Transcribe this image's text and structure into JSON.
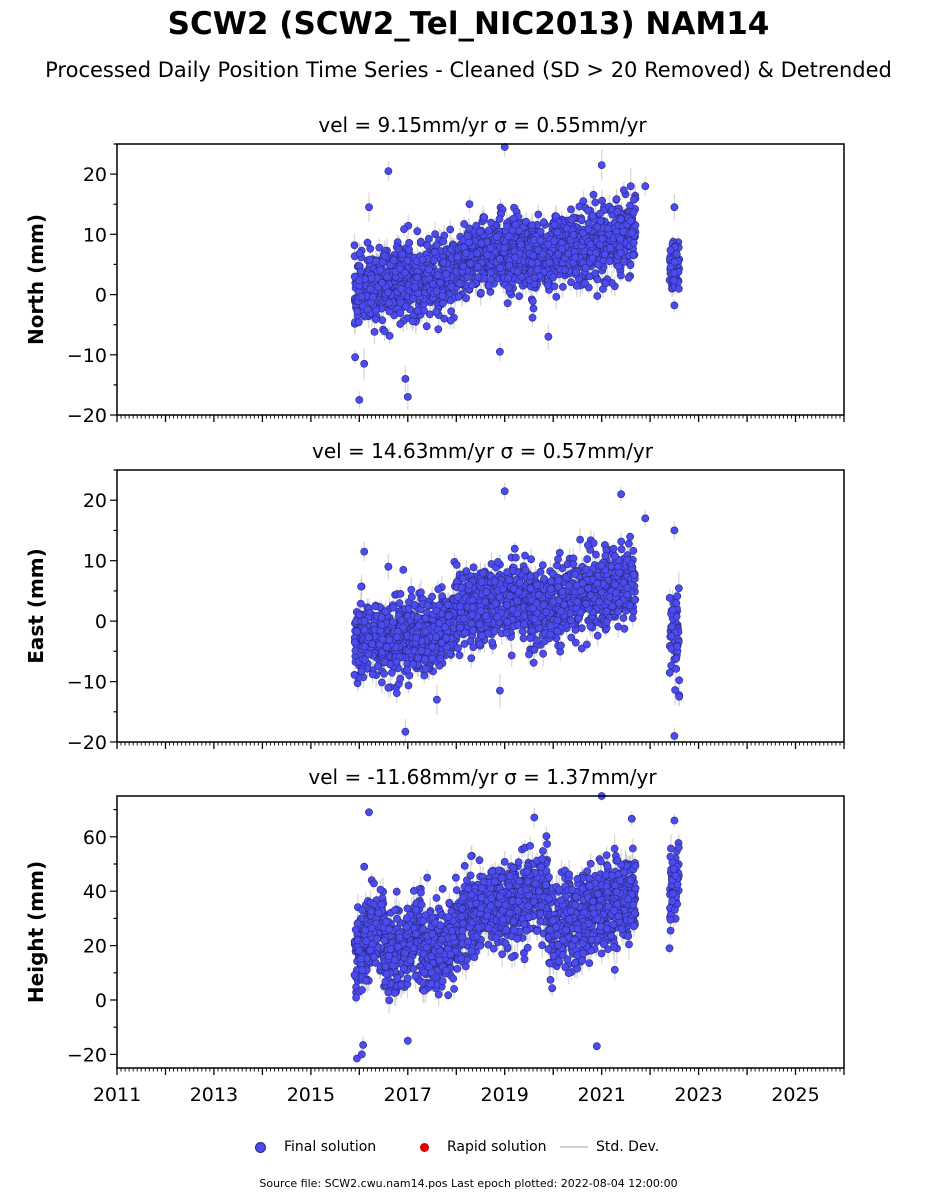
{
  "title": "SCW2 (SCW2_Tel_NIC2013) NAM14",
  "subtitle": "Processed Daily Position Time Series - Cleaned (SD > 20 Removed) & Detrended",
  "legend": {
    "final_label": "Final solution",
    "rapid_label": "Rapid solution",
    "std_label": "Std. Dev."
  },
  "footer": "Source file: SCW2.cwu.nam14.pos  Last epoch plotted: 2022-08-04 12:00:00",
  "colors": {
    "final": "#4b4bf0",
    "final_edge": "#2a2a80",
    "rapid": "#e00000",
    "std": "#c8c8c8"
  },
  "chart_data": [
    {
      "type": "scatter",
      "panel": "north",
      "title": "vel = 9.15mm/yr   σ = 0.55mm/yr",
      "ylabel": "North (mm)",
      "xlim": [
        2011,
        2026
      ],
      "ylim": [
        -20,
        25
      ],
      "yticks": [
        -20,
        -10,
        0,
        10,
        20
      ],
      "xticks": [
        2011,
        2013,
        2015,
        2017,
        2019,
        2021,
        2023,
        2025
      ],
      "series": [
        {
          "segments": [
            {
              "x": [
                2015.9,
                2017.1
              ],
              "y": [
                0,
                3
              ],
              "spread": 4
            },
            {
              "x": [
                2017.1,
                2018.0
              ],
              "y": [
                1,
                4
              ],
              "spread": 4
            },
            {
              "x": [
                2018.0,
                2019.5
              ],
              "y": [
                5,
                8
              ],
              "spread": 4
            },
            {
              "x": [
                2019.5,
                2021.7
              ],
              "y": [
                6,
                10
              ],
              "spread": 4
            },
            {
              "x": [
                2022.4,
                2022.6
              ],
              "y": [
                4,
                5
              ],
              "spread": 3
            }
          ],
          "outliers": [
            [
              2016.0,
              -17.5
            ],
            [
              2016.6,
              20.5
            ],
            [
              2019.0,
              24.5
            ],
            [
              2021.0,
              21.5
            ],
            [
              2017.0,
              -17
            ],
            [
              2016.2,
              14.5
            ],
            [
              2021.6,
              18
            ],
            [
              2018.9,
              -9.5
            ],
            [
              2016.1,
              -11.5
            ],
            [
              2019.9,
              -7
            ],
            [
              2022.5,
              14.5
            ],
            [
              2022.5,
              -1.8
            ],
            [
              2016.95,
              -14
            ],
            [
              2021.9,
              18
            ]
          ]
        }
      ]
    },
    {
      "type": "scatter",
      "panel": "east",
      "title": "vel = 14.63mm/yr   σ = 0.57mm/yr",
      "ylabel": "East (mm)",
      "xlim": [
        2011,
        2026
      ],
      "ylim": [
        -20,
        25
      ],
      "yticks": [
        -20,
        -10,
        0,
        10,
        20
      ],
      "xticks": [
        2011,
        2013,
        2015,
        2017,
        2019,
        2021,
        2023,
        2025
      ],
      "series": [
        {
          "segments": [
            {
              "x": [
                2015.9,
                2017.1
              ],
              "y": [
                -3,
                -3
              ],
              "spread": 4
            },
            {
              "x": [
                2017.1,
                2018.0
              ],
              "y": [
                -3,
                0
              ],
              "spread": 4
            },
            {
              "x": [
                2018.0,
                2019.5
              ],
              "y": [
                2,
                4
              ],
              "spread": 4
            },
            {
              "x": [
                2019.5,
                2021.7
              ],
              "y": [
                2,
                6
              ],
              "spread": 4
            },
            {
              "x": [
                2022.4,
                2022.6
              ],
              "y": [
                0,
                -3
              ],
              "spread": 5
            }
          ],
          "outliers": [
            [
              2016.95,
              -18.3
            ],
            [
              2019.0,
              21.5
            ],
            [
              2021.4,
              21
            ],
            [
              2022.5,
              -19
            ],
            [
              2022.5,
              15
            ],
            [
              2016.1,
              11.5
            ],
            [
              2022.6,
              -12.5
            ],
            [
              2017.6,
              -13
            ],
            [
              2018.9,
              -11.5
            ],
            [
              2021.9,
              17
            ],
            [
              2016.6,
              9
            ]
          ]
        }
      ]
    },
    {
      "type": "scatter",
      "panel": "height",
      "title": "vel = -11.68mm/yr   σ = 1.37mm/yr",
      "ylabel": "Height (mm)",
      "xlim": [
        2011,
        2026
      ],
      "ylim": [
        -25,
        75
      ],
      "yticks": [
        -20,
        0,
        20,
        40,
        60
      ],
      "xticks": [
        2011,
        2013,
        2015,
        2017,
        2019,
        2021,
        2023,
        2025
      ],
      "series": [
        {
          "segments": [
            {
              "x": [
                2015.9,
                2016.5
              ],
              "y": [
                15,
                30
              ],
              "spread": 10
            },
            {
              "x": [
                2016.5,
                2017.3
              ],
              "y": [
                15,
                25
              ],
              "spread": 10
            },
            {
              "x": [
                2017.3,
                2018.1
              ],
              "y": [
                15,
                25
              ],
              "spread": 10
            },
            {
              "x": [
                2018.1,
                2019.9
              ],
              "y": [
                30,
                40
              ],
              "spread": 10
            },
            {
              "x": [
                2019.9,
                2021.7
              ],
              "y": [
                25,
                40
              ],
              "spread": 11
            },
            {
              "x": [
                2022.4,
                2022.6
              ],
              "y": [
                40,
                45
              ],
              "spread": 10
            }
          ],
          "outliers": [
            [
              2016.2,
              69
            ],
            [
              2015.95,
              -21.5
            ],
            [
              2016.05,
              -20
            ],
            [
              2020.9,
              -17
            ],
            [
              2021.0,
              75
            ],
            [
              2017.0,
              -15
            ],
            [
              2022.5,
              66
            ],
            [
              2022.4,
              19
            ],
            [
              2016.1,
              49
            ],
            [
              2017.4,
              45
            ]
          ]
        }
      ]
    }
  ]
}
